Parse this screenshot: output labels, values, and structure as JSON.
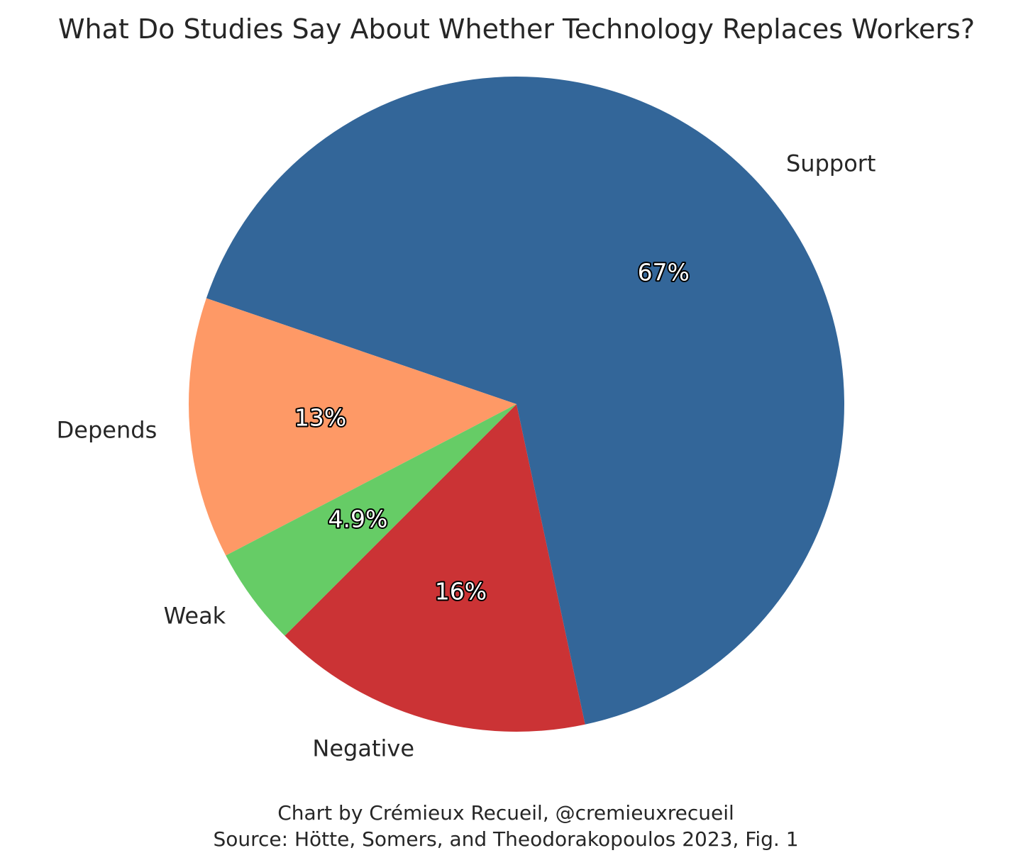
{
  "chart_data": {
    "type": "pie",
    "title": "What Do Studies Say About Whether Technology Replaces Workers?",
    "start_angle_deg": 225,
    "direction": "counterclockwise",
    "slices": [
      {
        "label": "Negative",
        "value": 16,
        "pct_label": "16%",
        "color": "#cb3335"
      },
      {
        "label": "Support",
        "value": 67,
        "pct_label": "67%",
        "color": "#336699"
      },
      {
        "label": "Depends",
        "value": 13,
        "pct_label": "13%",
        "color": "#fe9966"
      },
      {
        "label": "Weak",
        "value": 4.9,
        "pct_label": "4.9%",
        "color": "#66cc66"
      }
    ],
    "footer": {
      "credit": "Chart by Crémieux Recueil, @cremieuxrecueil",
      "source": "Source: Hötte, Somers, and Theodorakopoulos 2023, Fig. 1"
    }
  }
}
